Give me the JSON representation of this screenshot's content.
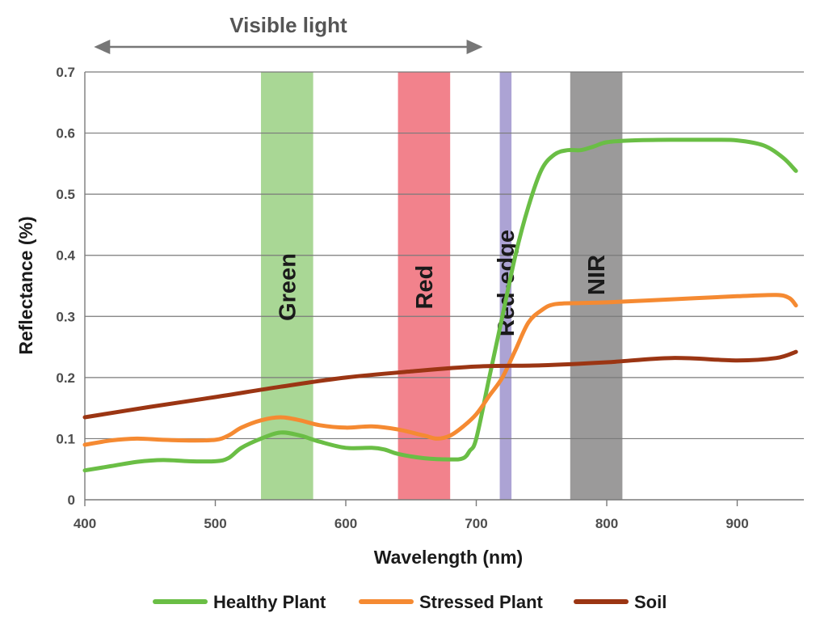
{
  "chart_data": {
    "type": "line",
    "xlabel": "Wavelength (nm)",
    "ylabel": "Reflectance (%)",
    "xlim": [
      400,
      950
    ],
    "ylim": [
      0,
      0.7
    ],
    "x_ticks": [
      "400",
      "500",
      "600",
      "700",
      "800",
      "900"
    ],
    "y_ticks": [
      "0",
      "0.1",
      "0.2",
      "0.3",
      "0.4",
      "0.5",
      "0.6",
      "0.7"
    ],
    "grid": "horizontal",
    "legend_position": "bottom",
    "annotation": {
      "text": "Visible light",
      "from": 407,
      "to": 705
    },
    "bands": [
      {
        "label": "Green",
        "from": 535,
        "to": 575,
        "color": "#a9d795"
      },
      {
        "label": "Red",
        "from": 640,
        "to": 680,
        "color": "#f2828c"
      },
      {
        "label": "Red-edge",
        "from": 718,
        "to": 727,
        "color": "#aca3d4"
      },
      {
        "label": "NIR",
        "from": 772,
        "to": 812,
        "color": "#9b9a9a"
      }
    ],
    "series": [
      {
        "name": "Healthy Plant",
        "color": "#6abe45",
        "x": [
          400,
          420,
          440,
          460,
          480,
          500,
          510,
          520,
          535,
          550,
          565,
          580,
          600,
          620,
          630,
          640,
          660,
          680,
          690,
          695,
          700,
          710,
          720,
          730,
          740,
          750,
          760,
          770,
          780,
          790,
          800,
          820,
          850,
          880,
          900,
          920,
          935,
          945
        ],
        "values": [
          0.048,
          0.055,
          0.062,
          0.065,
          0.063,
          0.063,
          0.068,
          0.085,
          0.1,
          0.11,
          0.105,
          0.095,
          0.085,
          0.085,
          0.082,
          0.075,
          0.068,
          0.066,
          0.068,
          0.08,
          0.1,
          0.2,
          0.3,
          0.4,
          0.48,
          0.54,
          0.565,
          0.572,
          0.572,
          0.578,
          0.585,
          0.588,
          0.589,
          0.589,
          0.588,
          0.58,
          0.56,
          0.538
        ]
      },
      {
        "name": "Stressed Plant",
        "color": "#f58a32",
        "x": [
          400,
          420,
          440,
          460,
          480,
          500,
          510,
          520,
          535,
          550,
          565,
          580,
          600,
          620,
          640,
          660,
          670,
          680,
          690,
          700,
          710,
          720,
          730,
          740,
          750,
          760,
          780,
          800,
          850,
          900,
          930,
          940,
          945
        ],
        "values": [
          0.09,
          0.097,
          0.1,
          0.098,
          0.097,
          0.098,
          0.105,
          0.118,
          0.13,
          0.135,
          0.13,
          0.122,
          0.118,
          0.12,
          0.115,
          0.105,
          0.1,
          0.105,
          0.12,
          0.14,
          0.17,
          0.2,
          0.245,
          0.29,
          0.31,
          0.32,
          0.322,
          0.323,
          0.328,
          0.333,
          0.335,
          0.33,
          0.318
        ]
      },
      {
        "name": "Soil",
        "color": "#9b3513",
        "x": [
          400,
          450,
          500,
          550,
          600,
          650,
          700,
          750,
          800,
          850,
          900,
          930,
          945
        ],
        "values": [
          0.135,
          0.152,
          0.168,
          0.185,
          0.2,
          0.21,
          0.218,
          0.22,
          0.225,
          0.232,
          0.228,
          0.232,
          0.242
        ]
      }
    ]
  }
}
